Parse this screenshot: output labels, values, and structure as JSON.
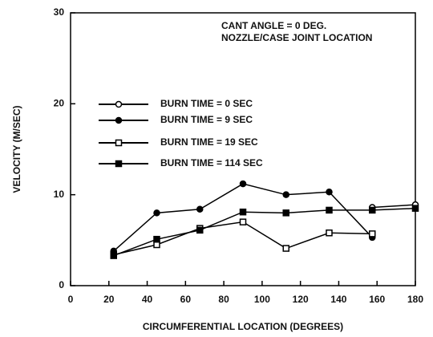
{
  "chart_data": {
    "type": "line",
    "annotations": [
      "CANT ANGLE = 0 DEG.",
      "NOZZLE/CASE JOINT LOCATION"
    ],
    "xlabel": "CIRCUMFERENTIAL LOCATION (DEGREES)",
    "ylabel": "VELOCITY  (M/SEC)",
    "x": [
      22.5,
      45,
      67.5,
      90,
      112.5,
      135,
      157.5,
      180
    ],
    "series": [
      {
        "name": "BURN TIME = 0 SEC",
        "color": "#000000",
        "marker": "open-circle",
        "values": [
          null,
          null,
          null,
          null,
          null,
          null,
          8.6,
          8.9
        ]
      },
      {
        "name": "BURN TIME = 9 SEC",
        "color": "#000000",
        "marker": "filled-circle",
        "values": [
          3.8,
          8.0,
          8.4,
          11.2,
          10.0,
          10.3,
          5.3,
          null
        ]
      },
      {
        "name": "BURN TIME = 19 SEC",
        "color": "#000000",
        "marker": "open-square",
        "values": [
          3.4,
          4.5,
          6.3,
          7.0,
          4.1,
          5.8,
          5.7,
          null
        ]
      },
      {
        "name": "BURN TIME = 114 SEC",
        "color": "#000000",
        "marker": "filled-square",
        "values": [
          3.3,
          5.1,
          6.1,
          8.1,
          8.0,
          8.3,
          8.3,
          8.5
        ]
      }
    ],
    "xlim": [
      0,
      180
    ],
    "xticks": [
      0,
      20,
      40,
      60,
      80,
      100,
      120,
      140,
      160,
      180
    ],
    "ylim": [
      0,
      30
    ],
    "yticks": [
      0,
      10,
      20,
      30
    ]
  }
}
